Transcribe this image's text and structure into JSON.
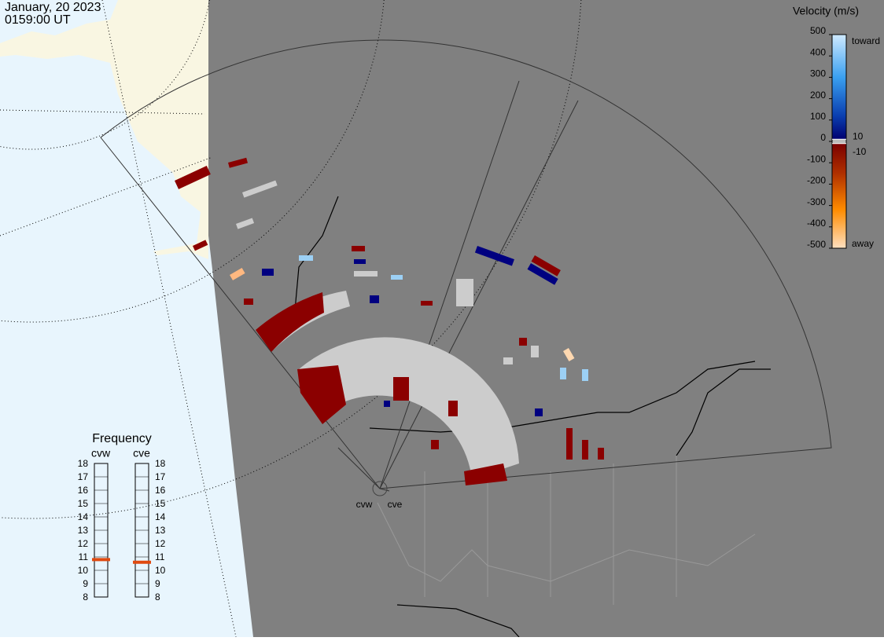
{
  "header": {
    "date": "January, 20 2023",
    "time": "0159:00 UT"
  },
  "colorbar": {
    "title": "Velocity (m/s)",
    "range": [
      -500,
      500
    ],
    "ticks": [
      500,
      400,
      300,
      200,
      100,
      0,
      -100,
      -200,
      -300,
      -400,
      -500
    ],
    "inner_ticks": [
      10,
      -10
    ],
    "toward": "toward",
    "away": "away"
  },
  "frequency": {
    "title": "Frequency",
    "range": [
      8,
      18
    ],
    "ticks": [
      8,
      9,
      10,
      11,
      12,
      13,
      14,
      15,
      16,
      17,
      18
    ],
    "radars": [
      {
        "name": "cvw",
        "value": 10.8
      },
      {
        "name": "cve",
        "value": 10.6
      }
    ]
  },
  "stations": [
    "cvw",
    "cve"
  ]
}
